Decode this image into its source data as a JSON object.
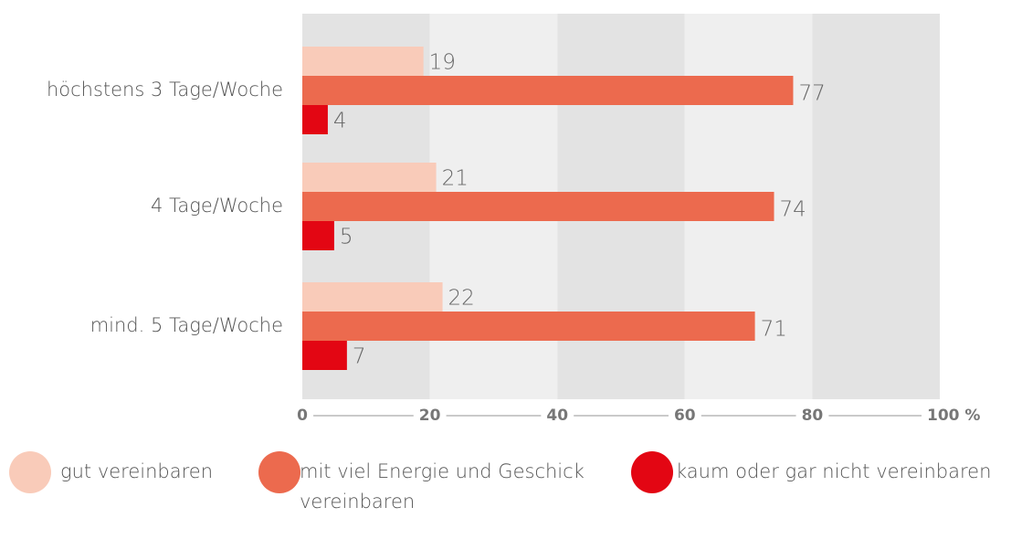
{
  "chart_data": {
    "type": "hbar",
    "categories": [
      "höchstens 3 Tage/Woche",
      "4 Tage/Woche",
      "mind. 5 Tage/Woche"
    ],
    "series": [
      {
        "name": "gut vereinbaren",
        "color": "#f9cbb9",
        "values": [
          19,
          21,
          22
        ]
      },
      {
        "name": "mit viel Energie und Geschick vereinbaren",
        "color": "#ec6a4e",
        "values": [
          77,
          74,
          71
        ]
      },
      {
        "name": "kaum oder gar nicht vereinbaren",
        "color": "#e30613",
        "values": [
          4,
          5,
          7
        ]
      }
    ],
    "xlim": [
      0,
      100
    ],
    "xticks": [
      0,
      20,
      40,
      60,
      80,
      {
        "value": 100,
        "label": "100 %"
      }
    ],
    "band_colors": [
      "#e3e3e3",
      "#efefef"
    ],
    "legend": "bottom"
  }
}
